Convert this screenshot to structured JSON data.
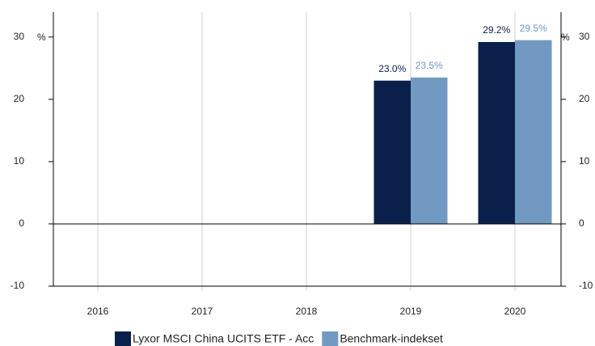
{
  "chart_data": {
    "type": "bar",
    "categories": [
      "2016",
      "2017",
      "2018",
      "2019",
      "2020"
    ],
    "series": [
      {
        "name": "Lyxor MSCI China UCITS ETF - Acc",
        "color": "#0b1f4b",
        "label_color": "#0b1f4b",
        "values": [
          null,
          null,
          null,
          23.0,
          29.2
        ],
        "value_labels": [
          null,
          null,
          null,
          "23.0%",
          "29.2%"
        ]
      },
      {
        "name": "Benchmark-indekset",
        "color": "#7299c1",
        "label_color": "#7299c1",
        "values": [
          null,
          null,
          null,
          23.5,
          29.5
        ],
        "value_labels": [
          null,
          null,
          null,
          "23.5%",
          "29.5%"
        ]
      }
    ],
    "y_label": "%",
    "y2_label": "%",
    "ylim": [
      -10,
      34
    ],
    "yticks": [
      -10,
      0,
      10,
      20,
      30
    ],
    "y2lim": [
      -10,
      34
    ],
    "y2ticks": [
      -10,
      0,
      10,
      20,
      30
    ],
    "grid": true,
    "legend": "bottom"
  }
}
